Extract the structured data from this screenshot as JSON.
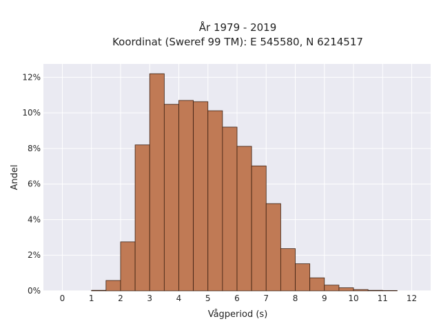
{
  "chart_data": {
    "type": "bar",
    "title_line1": "År 1979 - 2019",
    "title_line2": "Koordinat (Sweref 99 TM): E 545580, N 6214517",
    "xlabel": "Vågperiod (s)",
    "ylabel": "Andel",
    "xlim": [
      -0.65,
      12.65
    ],
    "ylim": [
      0,
      0.1275
    ],
    "x_ticks": [
      0,
      1,
      2,
      3,
      4,
      5,
      6,
      7,
      8,
      9,
      10,
      11,
      12
    ],
    "x_tick_labels": [
      "0",
      "1",
      "2",
      "3",
      "4",
      "5",
      "6",
      "7",
      "8",
      "9",
      "10",
      "11",
      "12"
    ],
    "y_ticks": [
      0,
      0.02,
      0.04,
      0.06,
      0.08,
      0.1,
      0.12
    ],
    "y_tick_labels": [
      "0%",
      "2%",
      "4%",
      "6%",
      "8%",
      "10%",
      "12%"
    ],
    "bin_width": 0.5,
    "bin_starts": [
      1.0,
      1.5,
      2.0,
      2.5,
      3.0,
      3.5,
      4.0,
      4.5,
      5.0,
      5.5,
      6.0,
      6.5,
      7.0,
      7.5,
      8.0,
      8.5,
      9.0,
      9.5,
      10.0,
      10.5,
      11.0
    ],
    "values": [
      0.0003,
      0.0058,
      0.0275,
      0.082,
      0.122,
      0.1048,
      0.107,
      0.1063,
      0.1012,
      0.092,
      0.0812,
      0.0702,
      0.049,
      0.0237,
      0.0152,
      0.0073,
      0.0032,
      0.0017,
      0.0007,
      0.0003,
      0.0002
    ],
    "grid": true,
    "colors": {
      "bar_fill": "#c07a55",
      "bar_edge": "#3a1f10",
      "plot_bg": "#eaeaf2",
      "grid": "#ffffff"
    }
  }
}
